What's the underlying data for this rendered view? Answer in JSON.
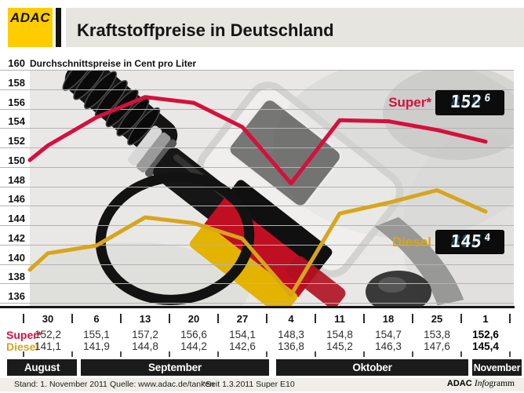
{
  "header": {
    "logo_text": "ADAC",
    "title": "Kraftstoffpreise in Deutschland"
  },
  "chart": {
    "subtitle": "Durchschnittspreise in Cent pro Liter",
    "super_label": "Super*",
    "diesel_label": "Diesel",
    "super_display": {
      "int": "152",
      "dec": "6"
    },
    "diesel_display": {
      "int": "145",
      "dec": "4"
    }
  },
  "chart_data": {
    "type": "line",
    "title": "Kraftstoffpreise in Deutschland",
    "ylabel": "Durchschnittspreise in Cent pro Liter",
    "ylim": [
      136,
      160
    ],
    "ytick_step": 2,
    "grid": true,
    "x_tick_labels": [
      "30",
      "6",
      "13",
      "20",
      "27",
      "4",
      "11",
      "18",
      "25",
      "1"
    ],
    "months": [
      "August",
      "September",
      "Oktober",
      "November"
    ],
    "series": [
      {
        "name": "Super",
        "color": "#d5103c",
        "edge_start": 150.7,
        "values": [
          152.2,
          155.1,
          157.2,
          156.6,
          154.1,
          148.3,
          154.8,
          154.7,
          153.8,
          152.6
        ]
      },
      {
        "name": "Diesel",
        "color": "#d7a51d",
        "edge_start": 139.4,
        "values": [
          141.1,
          141.9,
          144.8,
          144.2,
          142.6,
          136.8,
          145.2,
          146.3,
          147.6,
          145.4
        ]
      }
    ],
    "legend_position": "inline-right"
  },
  "table": {
    "row_labels": {
      "super": "Super*",
      "diesel": "Diesel"
    },
    "dates": [
      "30",
      "6",
      "13",
      "20",
      "27",
      "4",
      "11",
      "18",
      "25",
      "1"
    ],
    "super_values": [
      "152,2",
      "155,1",
      "157,2",
      "156,6",
      "154,1",
      "148,3",
      "154,8",
      "154,7",
      "153,8",
      "152,6"
    ],
    "diesel_values": [
      "141,1",
      "141,9",
      "144,8",
      "144,2",
      "142,6",
      "136,8",
      "145,2",
      "146,3",
      "147,6",
      "145,4"
    ]
  },
  "month_bands": [
    {
      "label": "August"
    },
    {
      "label": "September"
    },
    {
      "label": "Oktober"
    },
    {
      "label": "November"
    }
  ],
  "footer": {
    "stand": "Stand: 1. November 2011",
    "quelle": "Quelle: www.adac.de/tanken",
    "note": "*Seit 1.3.2011 Super E10",
    "brand_bold": "ADAC",
    "brand_italic": "Info",
    "brand_rest": "gramm"
  },
  "colors": {
    "super_red": "#d5103c",
    "diesel_gold": "#d7a51d",
    "adac_yellow": "#ffcc00",
    "display_bg": "#0c0c0c",
    "display_lit": "#eef4f6",
    "display_ghost": "#1d4254"
  }
}
